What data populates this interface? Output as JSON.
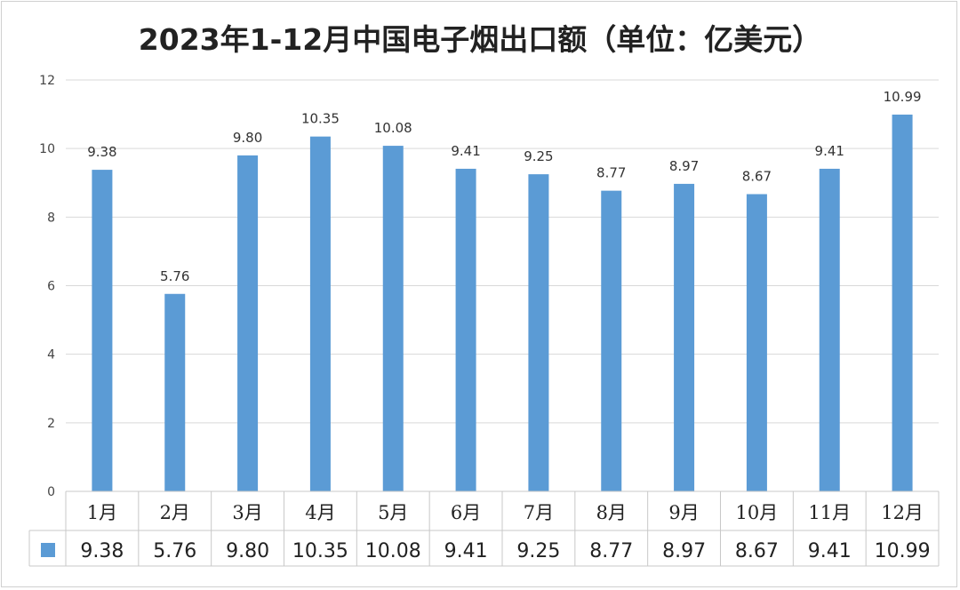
{
  "chart_data": {
    "type": "bar",
    "title": "2023年1-12月中国电子烟出口额（单位：亿美元）",
    "categories": [
      "1月",
      "2月",
      "3月",
      "4月",
      "5月",
      "6月",
      "7月",
      "8月",
      "9月",
      "10月",
      "11月",
      "12月"
    ],
    "values": [
      9.38,
      5.76,
      9.8,
      10.35,
      10.08,
      9.41,
      9.25,
      8.77,
      8.97,
      8.67,
      9.41,
      10.99
    ],
    "value_labels": [
      "9.38",
      "5.76",
      "9.80",
      "10.35",
      "10.08",
      "9.41",
      "9.25",
      "8.77",
      "8.97",
      "8.67",
      "9.41",
      "10.99"
    ],
    "ylim": [
      0,
      12
    ],
    "yticks": [
      "0",
      "2",
      "4",
      "6",
      "8",
      "10",
      "12"
    ],
    "grid": true,
    "legend": "data-table",
    "bar_color": "#5b9bd5",
    "xlabel": "",
    "ylabel": ""
  }
}
